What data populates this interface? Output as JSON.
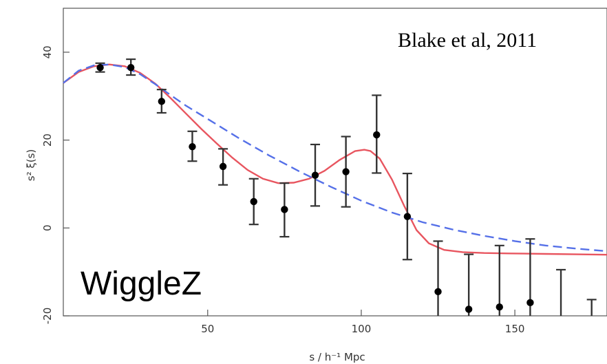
{
  "chart_data": {
    "type": "scatter",
    "title": "",
    "xlabel": "s / h⁻¹ Mpc",
    "ylabel": "s² ξ(s)",
    "xlim": [
      3,
      180
    ],
    "ylim": [
      -20,
      50
    ],
    "grid": false,
    "x_ticks": [
      50,
      100,
      150
    ],
    "y_ticks": [
      -20,
      0,
      20,
      40
    ],
    "annotations": {
      "credit": "Blake et al, 2011",
      "survey": "WiggleZ"
    },
    "points": {
      "x": [
        15,
        25,
        35,
        45,
        55,
        65,
        75,
        85,
        95,
        105,
        115,
        125,
        135,
        145,
        155,
        165,
        175
      ],
      "y": [
        36.5,
        36.5,
        28.8,
        18.5,
        14.0,
        6.0,
        4.2,
        12.0,
        12.8,
        21.2,
        2.6,
        -14.5,
        -18.5,
        -18.0,
        -17.0,
        null,
        null
      ],
      "err_low": [
        35.5,
        34.8,
        26.2,
        15.2,
        9.8,
        0.8,
        -2.0,
        5.0,
        4.8,
        12.5,
        -7.2,
        -24.0,
        -24.0,
        -24.0,
        -24.0,
        -24.0,
        -24.0
      ],
      "err_high": [
        37.5,
        38.4,
        31.5,
        22.0,
        18.0,
        11.2,
        10.2,
        19.0,
        20.8,
        30.2,
        12.4,
        -3.0,
        -6.0,
        -4.0,
        -2.5,
        -9.5,
        -16.3
      ]
    },
    "series": [
      {
        "style": "solid",
        "color": "#e8555f",
        "x": [
          3,
          8,
          13,
          18,
          23,
          28,
          33,
          38,
          43,
          48,
          53,
          58,
          63,
          68,
          73,
          78,
          83,
          88,
          93,
          98,
          101,
          103,
          106,
          110,
          114,
          118,
          122,
          127,
          133,
          140,
          148,
          160,
          170,
          180
        ],
        "y": [
          33.0,
          35.5,
          36.8,
          37.2,
          36.8,
          35.3,
          32.8,
          29.5,
          26.0,
          22.5,
          19.2,
          16.0,
          13.2,
          11.2,
          10.2,
          10.3,
          11.2,
          13.0,
          15.5,
          17.5,
          17.8,
          17.5,
          15.8,
          11.0,
          5.0,
          -0.5,
          -3.5,
          -5.0,
          -5.5,
          -5.7,
          -5.8,
          -5.9,
          -6.0,
          -6.1
        ]
      },
      {
        "style": "dashed",
        "color": "#5570e8",
        "x": [
          3,
          8,
          13,
          18,
          23,
          28,
          33,
          38,
          43,
          50,
          60,
          70,
          80,
          90,
          100,
          110,
          120,
          130,
          140,
          150,
          160,
          170,
          180
        ],
        "y": [
          33.0,
          35.8,
          37.0,
          37.2,
          36.6,
          35.0,
          32.7,
          30.2,
          27.8,
          24.8,
          20.5,
          16.5,
          12.8,
          9.4,
          6.2,
          3.5,
          1.3,
          -0.4,
          -1.8,
          -3.0,
          -4.0,
          -4.7,
          -5.3
        ]
      }
    ]
  }
}
